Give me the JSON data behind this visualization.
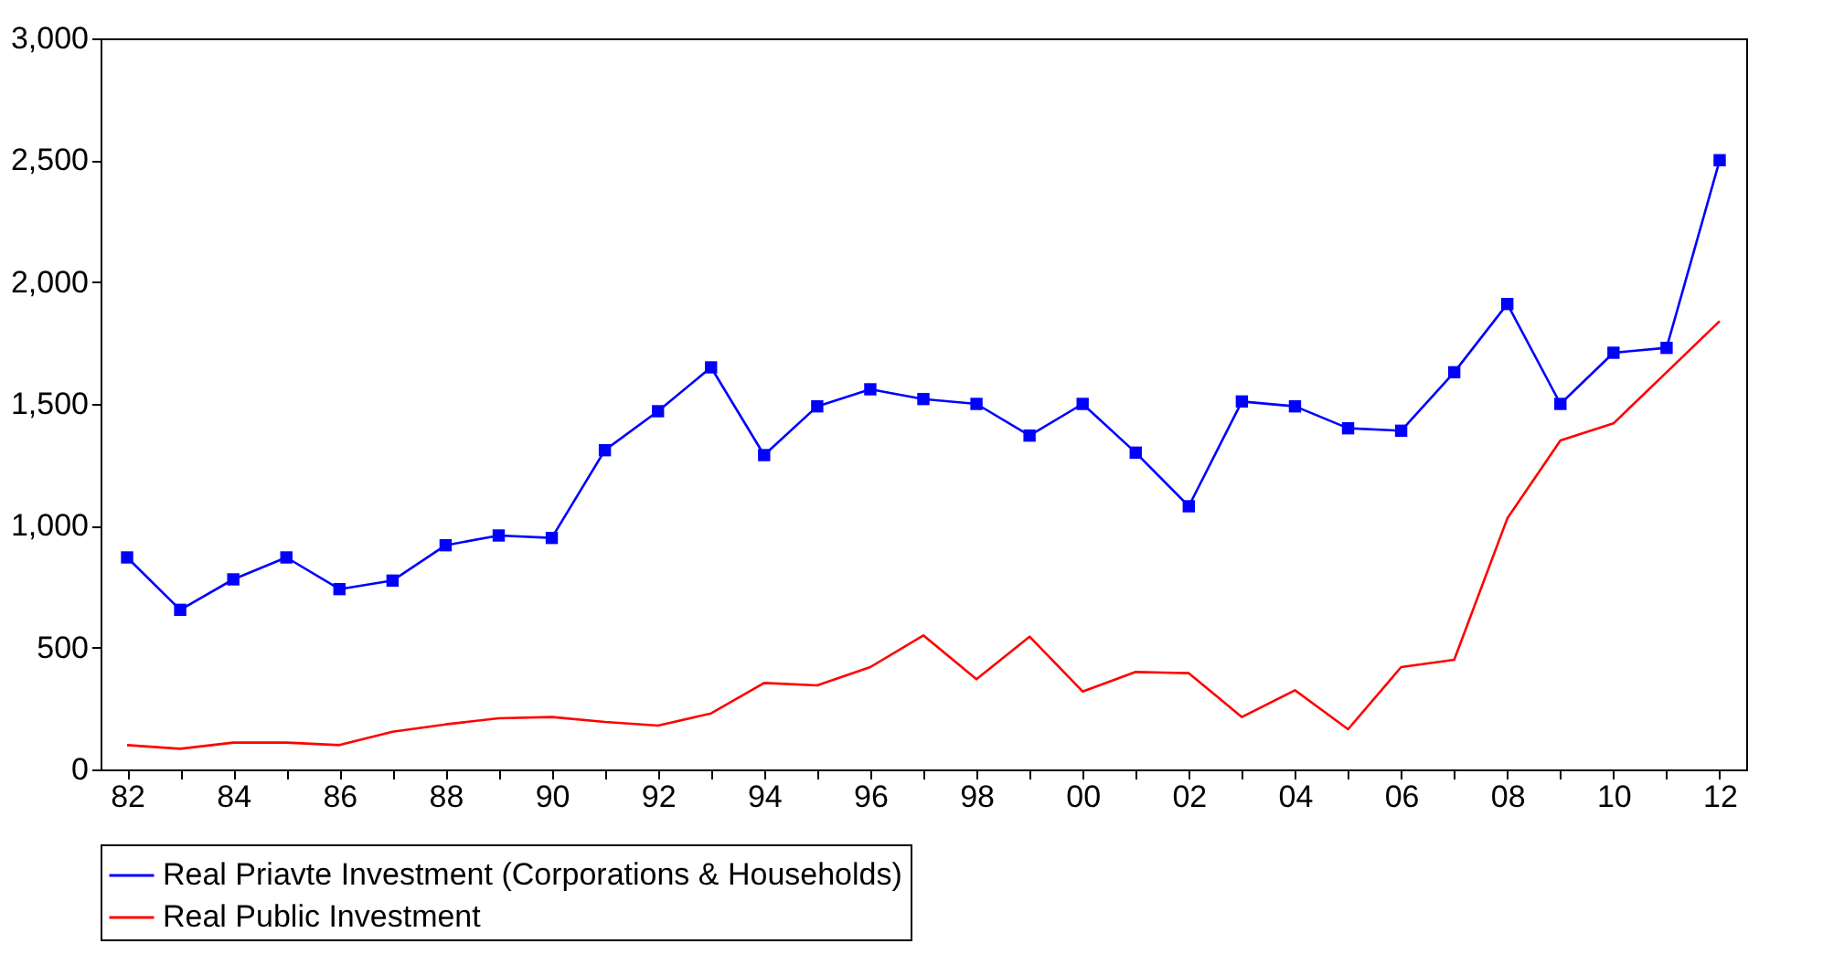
{
  "chart_data": {
    "type": "line",
    "categories": [
      "82",
      null,
      "84",
      null,
      "86",
      null,
      "88",
      null,
      "90",
      null,
      "92",
      null,
      "94",
      null,
      "96",
      null,
      "98",
      null,
      "00",
      null,
      "02",
      null,
      "04",
      null,
      "06",
      null,
      "08",
      null,
      "10",
      null,
      "12"
    ],
    "series": [
      {
        "name": "Real Priavte Investment (Corporations & Households)",
        "color": "#0000ff",
        "marker": "square",
        "values": [
          870,
          655,
          780,
          870,
          740,
          775,
          920,
          960,
          950,
          1310,
          1470,
          1650,
          1290,
          1490,
          1560,
          1520,
          1500,
          1370,
          1500,
          1300,
          1080,
          1510,
          1490,
          1400,
          1390,
          1630,
          1910,
          1500,
          1710,
          1730,
          2500
        ]
      },
      {
        "name": "Real Public Investment",
        "color": "#ff0000",
        "marker": "none",
        "values": [
          100,
          85,
          110,
          110,
          100,
          155,
          185,
          210,
          215,
          195,
          180,
          230,
          355,
          345,
          420,
          550,
          370,
          545,
          320,
          400,
          395,
          215,
          325,
          165,
          420,
          450,
          1030,
          1350,
          1420,
          1630,
          1840
        ]
      }
    ],
    "ylim": [
      0,
      3000
    ],
    "yticks": [
      0,
      500,
      {
        "value": 1000,
        "label": "1,000"
      },
      {
        "value": 1500,
        "label": "1,500"
      },
      {
        "value": 2000,
        "label": "2,000"
      },
      {
        "value": 2500,
        "label": "2,500"
      },
      {
        "value": 3000,
        "label": "3,000"
      }
    ],
    "grid": false,
    "legend": "bottom",
    "line_style": "solid"
  }
}
